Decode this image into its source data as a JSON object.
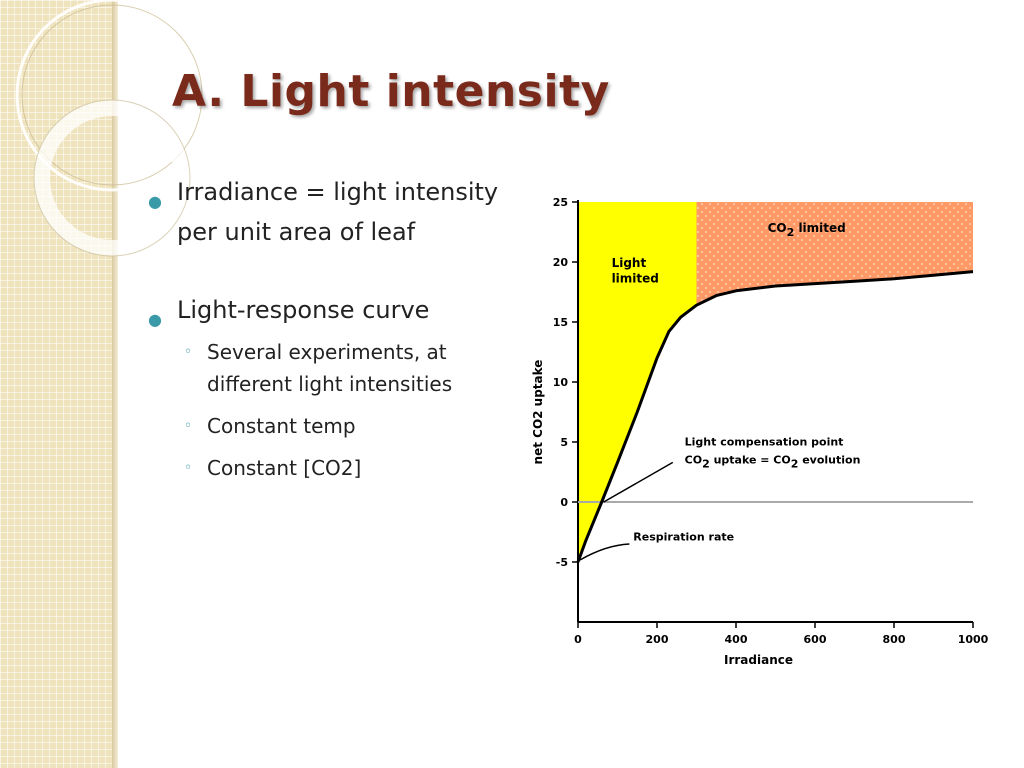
{
  "slide": {
    "title": "A. Light intensity",
    "bullets": [
      {
        "text": "Irradiance = light intensity per unit area of leaf"
      },
      {
        "text": "Light-response curve",
        "subs": [
          "Several experiments, at different light intensities",
          "Constant temp",
          "Constant [CO2]"
        ]
      }
    ]
  },
  "colors": {
    "title": "#7a2a1a",
    "bullet": "#3a9aa8",
    "light_limited": "#ffff00",
    "co2_limited": "#ff9966",
    "curve": "#000000",
    "zero_line": "#aaaaaa"
  },
  "chart_data": {
    "type": "line",
    "title": "",
    "xlabel": "Irradiance",
    "ylabel": "net CO2 uptake",
    "xlim": [
      0,
      1000
    ],
    "ylim": [
      -10,
      25
    ],
    "xticks": [
      0,
      200,
      400,
      600,
      800,
      1000
    ],
    "yticks": [
      -5,
      0,
      5,
      10,
      15,
      20,
      25
    ],
    "series": [
      {
        "x": [
          0,
          20,
          60,
          100,
          150,
          200,
          230,
          260,
          300,
          350,
          400,
          500,
          600,
          700,
          800,
          900,
          1000
        ],
        "y": [
          -5,
          -3.2,
          0,
          3.3,
          7.5,
          12,
          14.2,
          15.4,
          16.4,
          17.2,
          17.6,
          18,
          18.2,
          18.4,
          18.6,
          18.9,
          19.2
        ]
      }
    ],
    "regions": [
      {
        "label": "Light limited",
        "x_from": 0,
        "x_to": 300,
        "color": "#ffff00"
      },
      {
        "label_main": "CO",
        "label_sub": "2",
        "label_rest": " limited",
        "x_from": 300,
        "x_to": 1000,
        "color": "#ff9966"
      }
    ],
    "annotations": {
      "light_compensation": {
        "line1": "Light compensation point",
        "line2_a": "CO",
        "line2_sub1": "2",
        "line2_b": " uptake = CO",
        "line2_sub2": "2",
        "line2_c": " evolution",
        "x": 65,
        "y": 0
      },
      "respiration": {
        "text": "Respiration rate",
        "x": 0,
        "y": -5
      }
    }
  }
}
